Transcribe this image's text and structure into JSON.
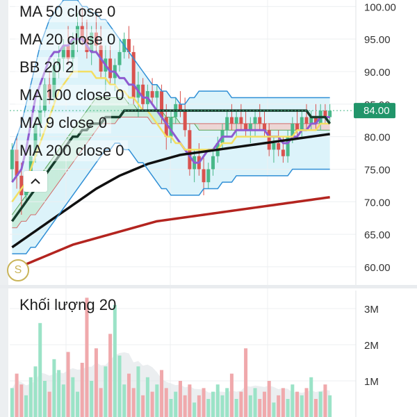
{
  "chart_data": [
    {
      "type": "candlestick",
      "ticker_indicators": [
        "MA 50 close 0",
        "MA 20 close 0",
        "BB 20 2",
        "MA 100 close 0",
        "MA 9 close 0",
        "MA 200 close 0"
      ],
      "last_price_label": "84.00",
      "y_ticks": [
        "100.00",
        "95.00",
        "90.00",
        "85.00",
        "80.00",
        "75.00",
        "70.00",
        "65.00",
        "60.00"
      ],
      "ylim": [
        57,
        101
      ],
      "candles": [
        [
          75,
          79,
          73,
          78
        ],
        [
          78,
          80,
          72,
          74
        ],
        [
          74,
          76,
          68,
          71
        ],
        [
          71,
          74,
          70,
          73
        ],
        [
          73,
          78,
          72,
          77
        ],
        [
          77,
          83,
          76,
          82
        ],
        [
          82,
          86,
          80,
          84
        ],
        [
          84,
          89,
          83,
          88
        ],
        [
          88,
          90,
          85,
          86
        ],
        [
          86,
          92,
          85,
          91
        ],
        [
          91,
          94,
          89,
          92
        ],
        [
          92,
          95,
          90,
          94
        ],
        [
          94,
          97,
          91,
          92
        ],
        [
          92,
          96,
          90,
          95
        ],
        [
          95,
          99,
          93,
          97
        ],
        [
          97,
          100,
          94,
          95
        ],
        [
          95,
          98,
          92,
          93
        ],
        [
          93,
          97,
          91,
          96
        ],
        [
          96,
          99,
          93,
          94
        ],
        [
          94,
          97,
          89,
          90
        ],
        [
          90,
          94,
          87,
          92
        ],
        [
          92,
          94,
          88,
          89
        ],
        [
          89,
          92,
          87,
          91
        ],
        [
          91,
          95,
          90,
          93
        ],
        [
          93,
          96,
          92,
          95
        ],
        [
          95,
          97,
          92,
          93
        ],
        [
          93,
          94,
          85,
          86
        ],
        [
          86,
          90,
          83,
          88
        ],
        [
          88,
          89,
          84,
          85
        ],
        [
          85,
          88,
          84,
          87
        ],
        [
          87,
          89,
          85,
          86
        ],
        [
          86,
          88,
          84,
          87
        ],
        [
          87,
          88,
          82,
          83
        ],
        [
          83,
          85,
          78,
          80
        ],
        [
          80,
          84,
          79,
          83
        ],
        [
          83,
          86,
          82,
          85
        ],
        [
          85,
          87,
          83,
          84
        ],
        [
          84,
          86,
          80,
          81
        ],
        [
          81,
          82,
          74,
          75
        ],
        [
          75,
          78,
          73,
          77
        ],
        [
          77,
          79,
          74,
          75
        ],
        [
          75,
          77,
          71,
          73
        ],
        [
          73,
          76,
          72,
          75
        ],
        [
          75,
          78,
          74,
          77
        ],
        [
          77,
          80,
          76,
          79
        ],
        [
          79,
          82,
          78,
          81
        ],
        [
          81,
          84,
          80,
          83
        ],
        [
          83,
          85,
          81,
          82
        ],
        [
          82,
          84,
          80,
          83
        ],
        [
          83,
          85,
          81,
          82
        ],
        [
          82,
          84,
          80,
          81
        ],
        [
          81,
          83,
          79,
          82
        ],
        [
          82,
          84,
          80,
          83
        ],
        [
          83,
          85,
          81,
          82
        ],
        [
          82,
          84,
          80,
          81
        ],
        [
          81,
          82,
          77,
          78
        ],
        [
          78,
          80,
          76,
          79
        ],
        [
          79,
          81,
          77,
          78
        ],
        [
          78,
          80,
          76,
          77
        ],
        [
          77,
          81,
          76,
          80
        ],
        [
          80,
          83,
          79,
          82
        ],
        [
          82,
          84,
          80,
          81
        ],
        [
          81,
          84,
          80,
          83
        ],
        [
          83,
          85,
          81,
          82
        ],
        [
          82,
          84,
          81,
          83
        ],
        [
          83,
          85,
          81,
          82
        ],
        [
          82,
          85,
          81,
          84
        ],
        [
          84,
          85,
          82,
          83
        ],
        [
          83,
          85,
          82,
          84
        ]
      ],
      "series": [
        {
          "name": "MA 9 close 0",
          "color": "#8e5bd0",
          "values": [
            73,
            74,
            75,
            78,
            82,
            86,
            88,
            90,
            92,
            93,
            93,
            94,
            94,
            95,
            95,
            95,
            94,
            93,
            93,
            92,
            91,
            90,
            90,
            89,
            89,
            88,
            88,
            87,
            86,
            86,
            85,
            84,
            83,
            82,
            81,
            80,
            79,
            78,
            77,
            76,
            76,
            77,
            78,
            78,
            79,
            80,
            80,
            80,
            81,
            81,
            81,
            81,
            81,
            81,
            81,
            80,
            80,
            80,
            79,
            79,
            80,
            80,
            81,
            81,
            82,
            82,
            83,
            83,
            83
          ]
        },
        {
          "name": "MA 20 close 0",
          "color": "#f3df62",
          "values": [
            70,
            71,
            72,
            73,
            75,
            77,
            79,
            81,
            83,
            85,
            87,
            88,
            89,
            90,
            90,
            90,
            90,
            90,
            89,
            89,
            89,
            88,
            88,
            87,
            87,
            86,
            86,
            85,
            84,
            84,
            83,
            82,
            81,
            80,
            80,
            79,
            79,
            78,
            78,
            78,
            78,
            78,
            78,
            78,
            78,
            79,
            79,
            79,
            80,
            80,
            80,
            80,
            80,
            80,
            80,
            80,
            80,
            80,
            80,
            80,
            80,
            81,
            81,
            81,
            81,
            81,
            82,
            82,
            82
          ]
        },
        {
          "name": "MA 50 close 0",
          "color": "#163d2c",
          "values": [
            67,
            68,
            69,
            70,
            71,
            72,
            73,
            74,
            75,
            76,
            77,
            78,
            79,
            80,
            80,
            81,
            81,
            82,
            82,
            82,
            83,
            83,
            83,
            83,
            84,
            84,
            84,
            84,
            84,
            84,
            84,
            84,
            84,
            84,
            84,
            84,
            84,
            84,
            84,
            84,
            84,
            84,
            84,
            84,
            84,
            84,
            84,
            84,
            84,
            84,
            84,
            84,
            84,
            84,
            84,
            84,
            84,
            84,
            84,
            84,
            84,
            84,
            84,
            84,
            83,
            83,
            83,
            83,
            82
          ]
        },
        {
          "name": "MA 100 close 0",
          "color": "#101010",
          "values": [
            63,
            63.5,
            64,
            64.5,
            65,
            65.5,
            66,
            66.5,
            67,
            67.5,
            68,
            68.5,
            69,
            69.5,
            70,
            70.5,
            71,
            71.5,
            72,
            72.4,
            72.8,
            73.2,
            73.6,
            74,
            74.3,
            74.6,
            74.9,
            75.2,
            75.5,
            75.8,
            76,
            76.2,
            76.4,
            76.6,
            76.8,
            77,
            77.2,
            77.3,
            77.4,
            77.5,
            77.6,
            77.7,
            77.8,
            77.9,
            78,
            78.1,
            78.2,
            78.3,
            78.4,
            78.5,
            78.6,
            78.7,
            78.8,
            78.9,
            79,
            79.1,
            79.2,
            79.3,
            79.4,
            79.5,
            79.6,
            79.7,
            79.8,
            79.9,
            80,
            80.1,
            80.2,
            80.3,
            80.4
          ]
        },
        {
          "name": "MA 200 close 0",
          "color": "#b3241f",
          "values": [
            59.5,
            59.8,
            60.1,
            60.4,
            60.7,
            61,
            61.3,
            61.6,
            61.9,
            62.2,
            62.5,
            62.8,
            63.1,
            63.4,
            63.6,
            63.8,
            64,
            64.2,
            64.4,
            64.6,
            64.8,
            65,
            65.2,
            65.4,
            65.6,
            65.8,
            66,
            66.2,
            66.4,
            66.6,
            66.8,
            67,
            67.1,
            67.2,
            67.3,
            67.4,
            67.5,
            67.6,
            67.7,
            67.8,
            67.9,
            68,
            68.1,
            68.2,
            68.3,
            68.4,
            68.5,
            68.6,
            68.7,
            68.8,
            68.9,
            69,
            69.1,
            69.2,
            69.3,
            69.4,
            69.5,
            69.6,
            69.7,
            69.8,
            69.9,
            70,
            70.1,
            70.2,
            70.3,
            70.4,
            70.5,
            70.6,
            70.7
          ]
        },
        {
          "name": "BB upper",
          "color": "#2f8fd6",
          "values": [
            78,
            80,
            82,
            85,
            88,
            91,
            94,
            96,
            98,
            99,
            100,
            101,
            101,
            101,
            101,
            100,
            100,
            99,
            99,
            98,
            98,
            97,
            96,
            95,
            94,
            93,
            92,
            91,
            90,
            89,
            88,
            88,
            87,
            87,
            86,
            86,
            85,
            85,
            86,
            86,
            87,
            87,
            87,
            87,
            87,
            87,
            87,
            86,
            86,
            86,
            86,
            86,
            86,
            86,
            86,
            86,
            86,
            86,
            86,
            86,
            86,
            86,
            86,
            86,
            86,
            86,
            86,
            86,
            86
          ]
        },
        {
          "name": "BB lower",
          "color": "#2f8fd6",
          "values": [
            62,
            62,
            62,
            62,
            63,
            63,
            64,
            65,
            66,
            67,
            68,
            69,
            70,
            71,
            72,
            73,
            74,
            75,
            76,
            77,
            78,
            78,
            79,
            79,
            78,
            78,
            77,
            76,
            76,
            75,
            74,
            73,
            72,
            72,
            71,
            71,
            71,
            71,
            71,
            71,
            71,
            72,
            72,
            72,
            72,
            73,
            73,
            73,
            74,
            74,
            74,
            74,
            74,
            74,
            74,
            74,
            74,
            74,
            74,
            74,
            75,
            75,
            75,
            75,
            75,
            75,
            75,
            75,
            75
          ]
        }
      ],
      "cloud": {
        "span_a": [
          68,
          69,
          70,
          71,
          72,
          73,
          74,
          75,
          76,
          77,
          78,
          79,
          80,
          81,
          82,
          83,
          84,
          85,
          86,
          86,
          86,
          86,
          86,
          86,
          86,
          85,
          85,
          84,
          84,
          84,
          84,
          84,
          84,
          83,
          83,
          83,
          82,
          82,
          82,
          82,
          81,
          81,
          81,
          81,
          81,
          81,
          81,
          81,
          81,
          81,
          81,
          81,
          81,
          81,
          81,
          81,
          81,
          81,
          81,
          81,
          81,
          81,
          81,
          81,
          81,
          81,
          81,
          81,
          81
        ],
        "span_b": [
          66,
          66,
          67,
          67,
          68,
          68,
          69,
          70,
          71,
          72,
          73,
          74,
          75,
          76,
          77,
          78,
          79,
          80,
          81,
          82,
          82,
          82,
          82,
          83,
          83,
          83,
          83,
          83,
          83,
          83,
          82,
          82,
          82,
          82,
          82,
          82,
          82,
          82,
          82,
          82,
          82,
          82,
          82,
          82,
          82,
          82,
          82,
          82,
          82,
          82,
          82,
          82,
          82,
          82,
          82,
          82,
          82,
          82,
          82,
          82,
          82,
          82,
          82,
          82,
          82,
          82,
          82,
          82,
          82
        ],
        "fill_up": "#bfe8cf",
        "fill_down": "#f3c7c3"
      }
    },
    {
      "type": "bar",
      "title": "Khối lượng 20",
      "y_ticks": [
        "3M",
        "2M",
        "1M"
      ],
      "ylim": [
        0,
        3.5
      ],
      "values": [
        0.8,
        1.2,
        0.9,
        0.6,
        1.1,
        1.4,
        2.6,
        1.0,
        0.7,
        1.6,
        1.3,
        0.9,
        1.8,
        1.1,
        0.7,
        1.5,
        3.3,
        1.0,
        1.9,
        0.8,
        1.4,
        2.3,
        3.1,
        1.7,
        0.9,
        1.2,
        0.8,
        1.4,
        0.6,
        1.1,
        0.7,
        0.9,
        1.3,
        0.8,
        0.5,
        0.7,
        1.0,
        0.6,
        0.9,
        0.4,
        0.6,
        0.8,
        0.5,
        0.7,
        0.9,
        0.6,
        0.8,
        1.2,
        0.5,
        0.7,
        1.9,
        0.6,
        0.8,
        0.5,
        0.7,
        1.0,
        0.4,
        0.6,
        0.8,
        0.5,
        0.9,
        0.7,
        0.6,
        0.8,
        1.1,
        0.5,
        0.7,
        0.9,
        0.6
      ]
    }
  ]
}
